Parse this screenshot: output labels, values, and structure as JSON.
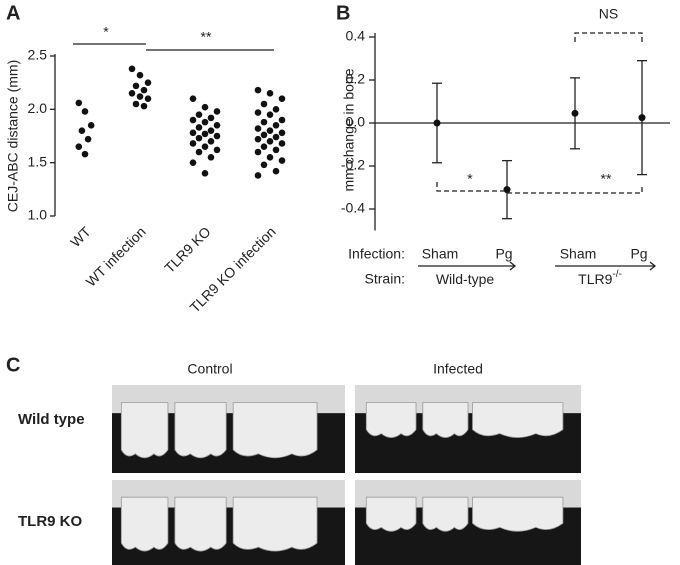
{
  "chart_data": [
    {
      "type": "dotplot",
      "label": "A",
      "ylabel": "CEJ-ABC distance (mm)",
      "categories": [
        "WT",
        "WT infection",
        "TLR9 KO",
        "TLR9 KO infection"
      ],
      "values": [
        [
          2.06,
          1.98,
          1.85,
          1.8,
          1.72,
          1.65,
          1.58
        ],
        [
          2.38,
          2.32,
          2.25,
          2.22,
          2.18,
          2.15,
          2.12,
          2.1,
          2.05,
          2.03
        ],
        [
          2.1,
          2.02,
          1.98,
          1.95,
          1.92,
          1.9,
          1.88,
          1.85,
          1.83,
          1.8,
          1.78,
          1.77,
          1.75,
          1.73,
          1.7,
          1.68,
          1.65,
          1.62,
          1.6,
          1.55,
          1.5,
          1.4
        ],
        [
          2.18,
          2.15,
          2.1,
          2.05,
          2.0,
          1.97,
          1.95,
          1.9,
          1.88,
          1.85,
          1.82,
          1.8,
          1.78,
          1.76,
          1.74,
          1.72,
          1.7,
          1.68,
          1.65,
          1.62,
          1.6,
          1.55,
          1.52,
          1.48,
          1.42,
          1.38
        ]
      ],
      "color": "#111111",
      "ylim": [
        1,
        2.5
      ],
      "yticks": [
        {
          "value": 1,
          "label": "1.0"
        },
        1.5,
        {
          "value": 2,
          "label": "2.0"
        },
        2.5
      ],
      "annotations": [
        "*",
        "**"
      ]
    },
    {
      "type": "errorbar",
      "label": "B",
      "ylabel": "mm change in bone",
      "categories": [
        "Sham",
        "Pg",
        "Sham",
        "Pg"
      ],
      "values": [
        0.0,
        -0.31,
        0.045,
        0.025
      ],
      "errors": [
        0.185,
        0.135,
        0.165,
        0.265
      ],
      "color": "#111111",
      "ylim": [
        -0.5,
        0.4
      ],
      "yticks": [
        0.4,
        0.2,
        {
          "value": 0,
          "label": "0.0"
        },
        -0.2,
        -0.4
      ],
      "row_labels": [
        "Infection:",
        "Strain:"
      ],
      "groups": [
        {
          "label": "Wild-type"
        },
        {
          "label": "TLR9",
          "superscript": "-/-"
        }
      ],
      "annotations": [
        "NS",
        "*",
        "**"
      ]
    }
  ],
  "panel_c": {
    "label": "C",
    "columns": [
      "Control",
      "Infected"
    ],
    "rows": [
      "Wild type",
      "TLR9 KO"
    ]
  }
}
